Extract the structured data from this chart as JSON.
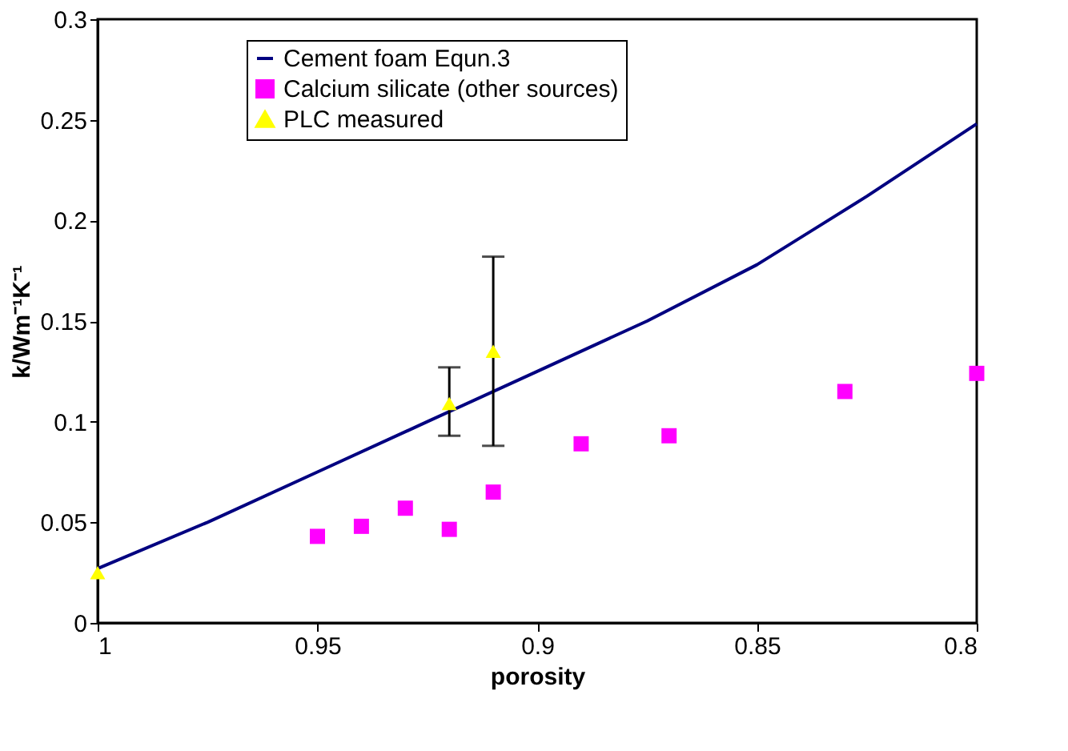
{
  "chart_data": {
    "type": "scatter",
    "xlabel": "porosity",
    "ylabel": "k/Wm⁻¹K⁻¹",
    "xlim": [
      1,
      0.8
    ],
    "xticks": [
      1,
      0.95,
      0.9,
      0.85,
      0.8
    ],
    "ylim": [
      0,
      0.3
    ],
    "yticks": [
      0,
      0.05,
      0.1,
      0.15,
      0.2,
      0.25,
      0.3
    ],
    "grid": false,
    "legend": "top",
    "series": [
      {
        "name": "Cement foam Equn.3",
        "type": "line",
        "color": "#000080",
        "marker": "none",
        "line_style": "solid",
        "x": [
          1,
          0.975,
          0.95,
          0.925,
          0.9,
          0.875,
          0.85,
          0.825,
          0.8
        ],
        "values": [
          0.027,
          0.05,
          0.075,
          0.1,
          0.125,
          0.15,
          0.178,
          0.212,
          0.248
        ]
      },
      {
        "name": "Calcium silicate (other sources)",
        "color": "#ff00ff",
        "marker": "square",
        "x": [
          0.95,
          0.94,
          0.93,
          0.92,
          0.91,
          0.89,
          0.87,
          0.83,
          0.8
        ],
        "values": [
          0.043,
          0.048,
          0.057,
          0.0465,
          0.065,
          0.089,
          0.093,
          0.115,
          0.124
        ]
      },
      {
        "name": "PLC measured",
        "color": "#ffff00",
        "marker": "triangle",
        "x": [
          1,
          0.92,
          0.91
        ],
        "values": [
          0.025,
          0.109,
          0.135
        ],
        "errors": [
          null,
          [
            0.093,
            0.127
          ],
          [
            0.088,
            0.182
          ]
        ]
      }
    ]
  }
}
